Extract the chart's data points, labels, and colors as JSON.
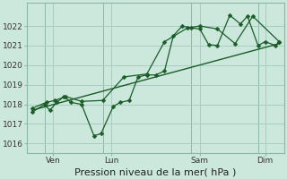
{
  "xlabel": "Pression niveau de la mer( hPa )",
  "background_color": "#cce8dc",
  "grid_color": "#aaccc0",
  "line_color": "#1a5c28",
  "ylim": [
    1015.5,
    1023.2
  ],
  "yticks": [
    1016,
    1017,
    1018,
    1019,
    1020,
    1021,
    1022
  ],
  "xlim": [
    -0.3,
    14.3
  ],
  "xtick_labels": [
    "Ven",
    "Lun",
    "Sam",
    "Dim"
  ],
  "xtick_positions": [
    1.2,
    4.5,
    9.5,
    13.2
  ],
  "vlines_x": [
    0.7,
    4.0,
    9.0,
    12.8
  ],
  "series1_x": [
    0,
    0.7,
    1.0,
    1.4,
    1.8,
    2.2,
    2.8,
    3.5,
    3.9,
    4.6,
    5.0,
    5.5,
    6.0,
    6.5,
    7.0,
    7.5,
    8.0,
    8.5,
    9.0,
    9.5,
    10.0,
    10.5,
    11.2,
    11.8,
    12.2,
    12.8,
    13.2,
    13.8,
    14.0
  ],
  "series1_y": [
    1017.6,
    1018.0,
    1017.7,
    1018.1,
    1018.4,
    1018.1,
    1018.0,
    1016.4,
    1016.5,
    1017.9,
    1018.1,
    1018.2,
    1019.4,
    1019.5,
    1019.5,
    1019.7,
    1021.5,
    1022.0,
    1021.9,
    1021.85,
    1021.05,
    1021.0,
    1022.55,
    1022.1,
    1022.5,
    1021.0,
    1021.2,
    1021.0,
    1021.2
  ],
  "series2_x": [
    0,
    0.8,
    1.3,
    1.9,
    2.8,
    4.0,
    5.2,
    6.5,
    7.5,
    8.8,
    9.5,
    10.5,
    11.5,
    12.5,
    14.0
  ],
  "series2_y": [
    1017.8,
    1018.1,
    1018.2,
    1018.4,
    1018.15,
    1018.2,
    1019.4,
    1019.55,
    1021.2,
    1021.9,
    1022.0,
    1021.85,
    1021.1,
    1022.5,
    1021.2
  ],
  "series3_x": [
    0,
    14.0
  ],
  "series3_y": [
    1017.7,
    1021.1
  ],
  "marker_size": 2.5,
  "xlabel_fontsize": 8,
  "tick_fontsize": 6.5
}
